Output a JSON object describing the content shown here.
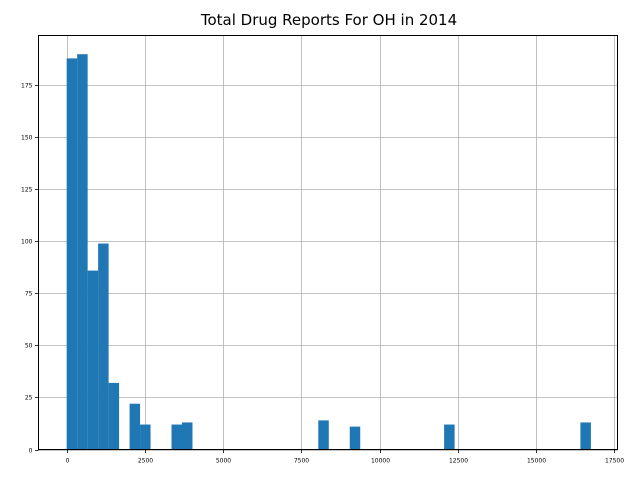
{
  "chart_data": {
    "type": "bar",
    "title": "Total Drug Reports For OH in 2014",
    "xlabel": "",
    "ylabel": "",
    "xlim": [
      -900,
      17600
    ],
    "ylim": [
      0,
      199
    ],
    "grid": true,
    "bar_color": "#1f77b4",
    "grid_color": "#b0b0b0",
    "x_ticks": [
      0,
      2500,
      5000,
      7500,
      10000,
      12500,
      15000,
      17500
    ],
    "y_ticks": [
      0,
      25,
      50,
      75,
      100,
      125,
      150,
      175
    ],
    "bins": [
      {
        "x0": 0,
        "x1": 335,
        "count": 188
      },
      {
        "x0": 335,
        "x1": 670,
        "count": 190
      },
      {
        "x0": 670,
        "x1": 1005,
        "count": 86
      },
      {
        "x0": 1005,
        "x1": 1340,
        "count": 99
      },
      {
        "x0": 1340,
        "x1": 1675,
        "count": 32
      },
      {
        "x0": 2010,
        "x1": 2345,
        "count": 22
      },
      {
        "x0": 2345,
        "x1": 2680,
        "count": 12
      },
      {
        "x0": 3350,
        "x1": 3685,
        "count": 12
      },
      {
        "x0": 3685,
        "x1": 4020,
        "count": 13
      },
      {
        "x0": 8040,
        "x1": 8375,
        "count": 14
      },
      {
        "x0": 9045,
        "x1": 9380,
        "count": 11
      },
      {
        "x0": 12060,
        "x1": 12395,
        "count": 12
      },
      {
        "x0": 16415,
        "x1": 16750,
        "count": 13
      }
    ]
  }
}
